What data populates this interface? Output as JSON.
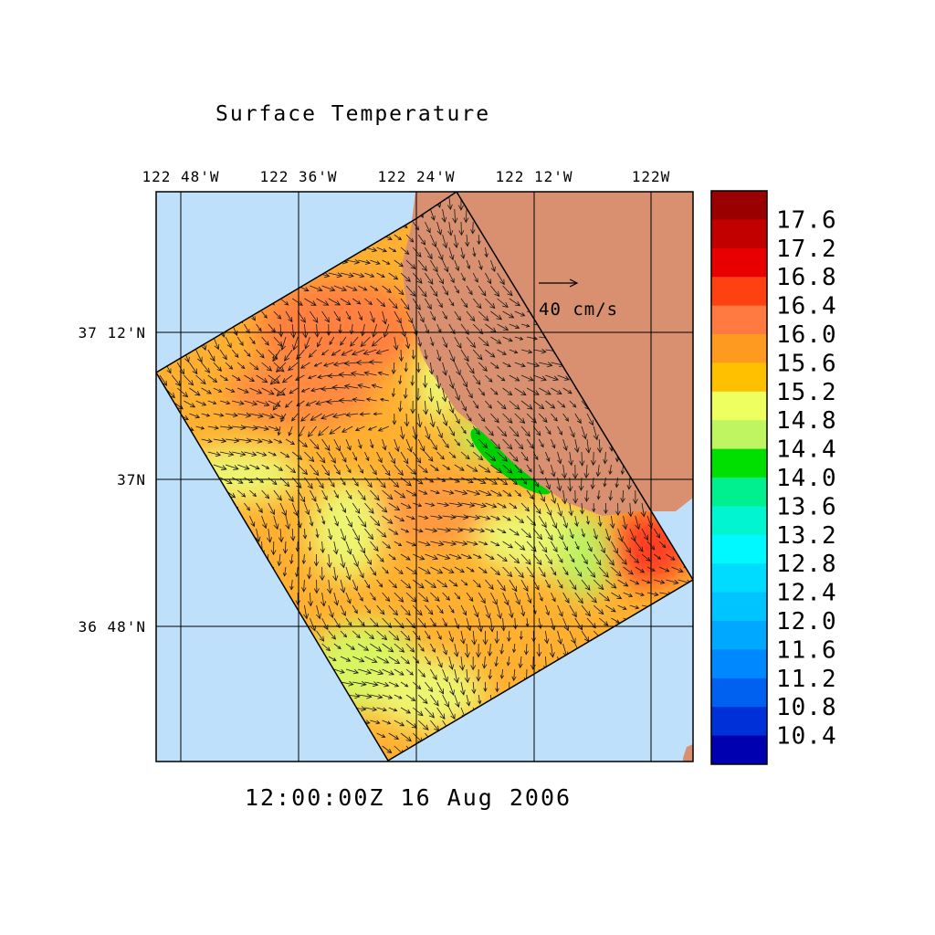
{
  "title": "Surface Temperature",
  "timestamp": "12:00:00Z  16 Aug 2006",
  "scale_label": "40 cm/s",
  "lon_labels": [
    "122 48'W",
    "122 36'W",
    "122 24'W",
    "122 12'W",
    "122W"
  ],
  "lat_labels": [
    "37 12'N",
    "37N",
    "36 48'N"
  ],
  "colorbar": {
    "labels": [
      "17.6",
      "17.2",
      "16.8",
      "16.4",
      "16.0",
      "15.6",
      "15.2",
      "14.8",
      "14.4",
      "14.0",
      "13.6",
      "13.2",
      "12.8",
      "12.4",
      "12.0",
      "11.6",
      "11.2",
      "10.8",
      "10.4"
    ],
    "colors": [
      "#9a0000",
      "#c20000",
      "#e80000",
      "#ff4010",
      "#ff7a40",
      "#ff9a20",
      "#ffc000",
      "#eeff60",
      "#bff560",
      "#00e000",
      "#00f090",
      "#00f5d0",
      "#00f8ff",
      "#00dcff",
      "#00c4ff",
      "#00a8ff",
      "#0088ff",
      "#0060f0",
      "#0030d8",
      "#0000b0"
    ]
  },
  "colors": {
    "ocean": "#bfe0fb",
    "land": "#d99070",
    "field_base": "#ffb030",
    "warm": "#ff8040",
    "hot": "#ff4020",
    "cool": "#eef570",
    "cooler": "#bdf060",
    "cold": "#00d000"
  },
  "map_elements": {
    "ocean": "ocean",
    "land": "land",
    "domain": "model-domain",
    "vectors": "velocity-vectors"
  }
}
